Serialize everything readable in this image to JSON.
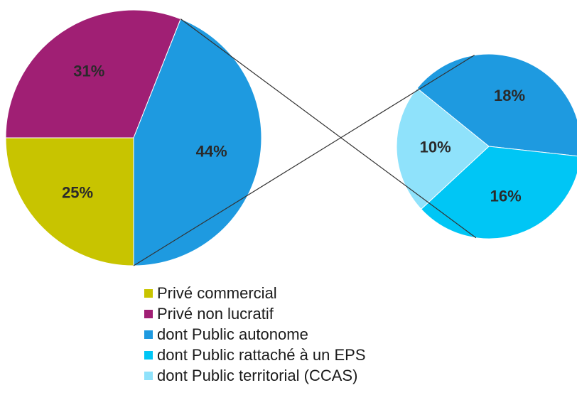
{
  "chart_data": {
    "type": "pie",
    "main_pie": {
      "slices": [
        {
          "label": "Privé commercial",
          "value": 25,
          "display": "25%",
          "color": "#c8c400",
          "segment": "commercial"
        },
        {
          "label": "Privé non lucratif",
          "value": 31,
          "display": "31%",
          "color": "#a01f74",
          "segment": "non-lucratif"
        },
        {
          "label": "Public",
          "value": 44,
          "display": "44%",
          "color": "#1e9ae0",
          "segment": "public"
        }
      ]
    },
    "detail_pie": {
      "slices": [
        {
          "label": "dont Public autonome",
          "value": 18,
          "display": "18%",
          "color": "#1e9ae0",
          "segment": "autonome"
        },
        {
          "label": "dont Public rattaché à un EPS",
          "value": 16,
          "display": "16%",
          "color": "#00c6f5",
          "segment": "rattache-eps"
        },
        {
          "label": "dont Public territorial (CCAS)",
          "value": 10,
          "display": "10%",
          "color": "#8fe2fb",
          "segment": "territorial-ccas"
        }
      ]
    },
    "legend": [
      {
        "label": "Privé commercial",
        "color": "#c8c400"
      },
      {
        "label": "Privé non lucratif",
        "color": "#a01f74"
      },
      {
        "label": "dont Public autonome",
        "color": "#1e9ae0"
      },
      {
        "label": "dont Public rattaché à un EPS",
        "color": "#00c6f5"
      },
      {
        "label": "dont Public territorial (CCAS)",
        "color": "#8fe2fb"
      }
    ],
    "legend_position": "bottom-center"
  }
}
